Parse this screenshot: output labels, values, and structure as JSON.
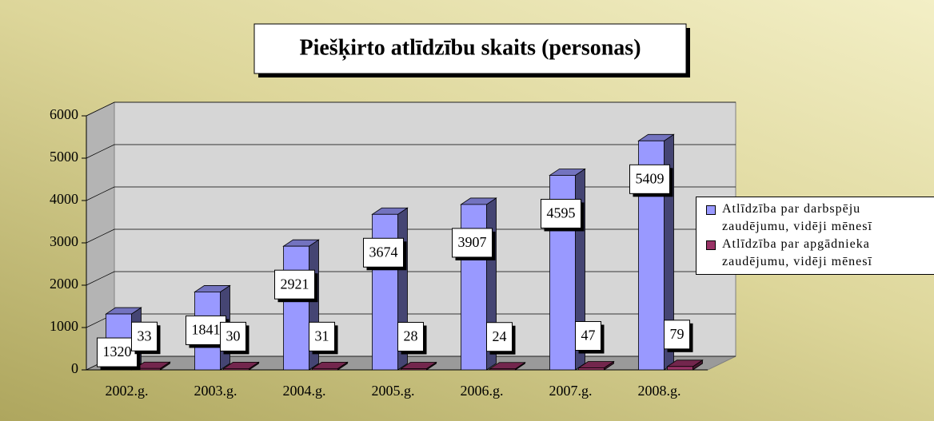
{
  "chart_data": {
    "type": "bar3d",
    "title": "Piešķirto atlīdzību skaits (personas)",
    "categories": [
      "2002.g.",
      "2003.g.",
      "2004.g.",
      "2005.g.",
      "2006.g.",
      "2007.g.",
      "2008.g."
    ],
    "series": [
      {
        "name": "Atlīdzība par darbspēju zaudējumu, vidēji mēnesī",
        "color": "#9999ff",
        "values": [
          1320,
          1841,
          2921,
          3674,
          3907,
          4595,
          5409
        ]
      },
      {
        "name": "Atlīdzība par apgādnieka zaudējumu, vidēji mēnesī",
        "color": "#993366",
        "values": [
          33,
          30,
          31,
          28,
          24,
          47,
          79
        ]
      }
    ],
    "ylim": [
      0,
      6000
    ],
    "yticks": [
      0,
      1000,
      2000,
      3000,
      4000,
      5000,
      6000
    ],
    "grid": true,
    "legend": "right"
  }
}
